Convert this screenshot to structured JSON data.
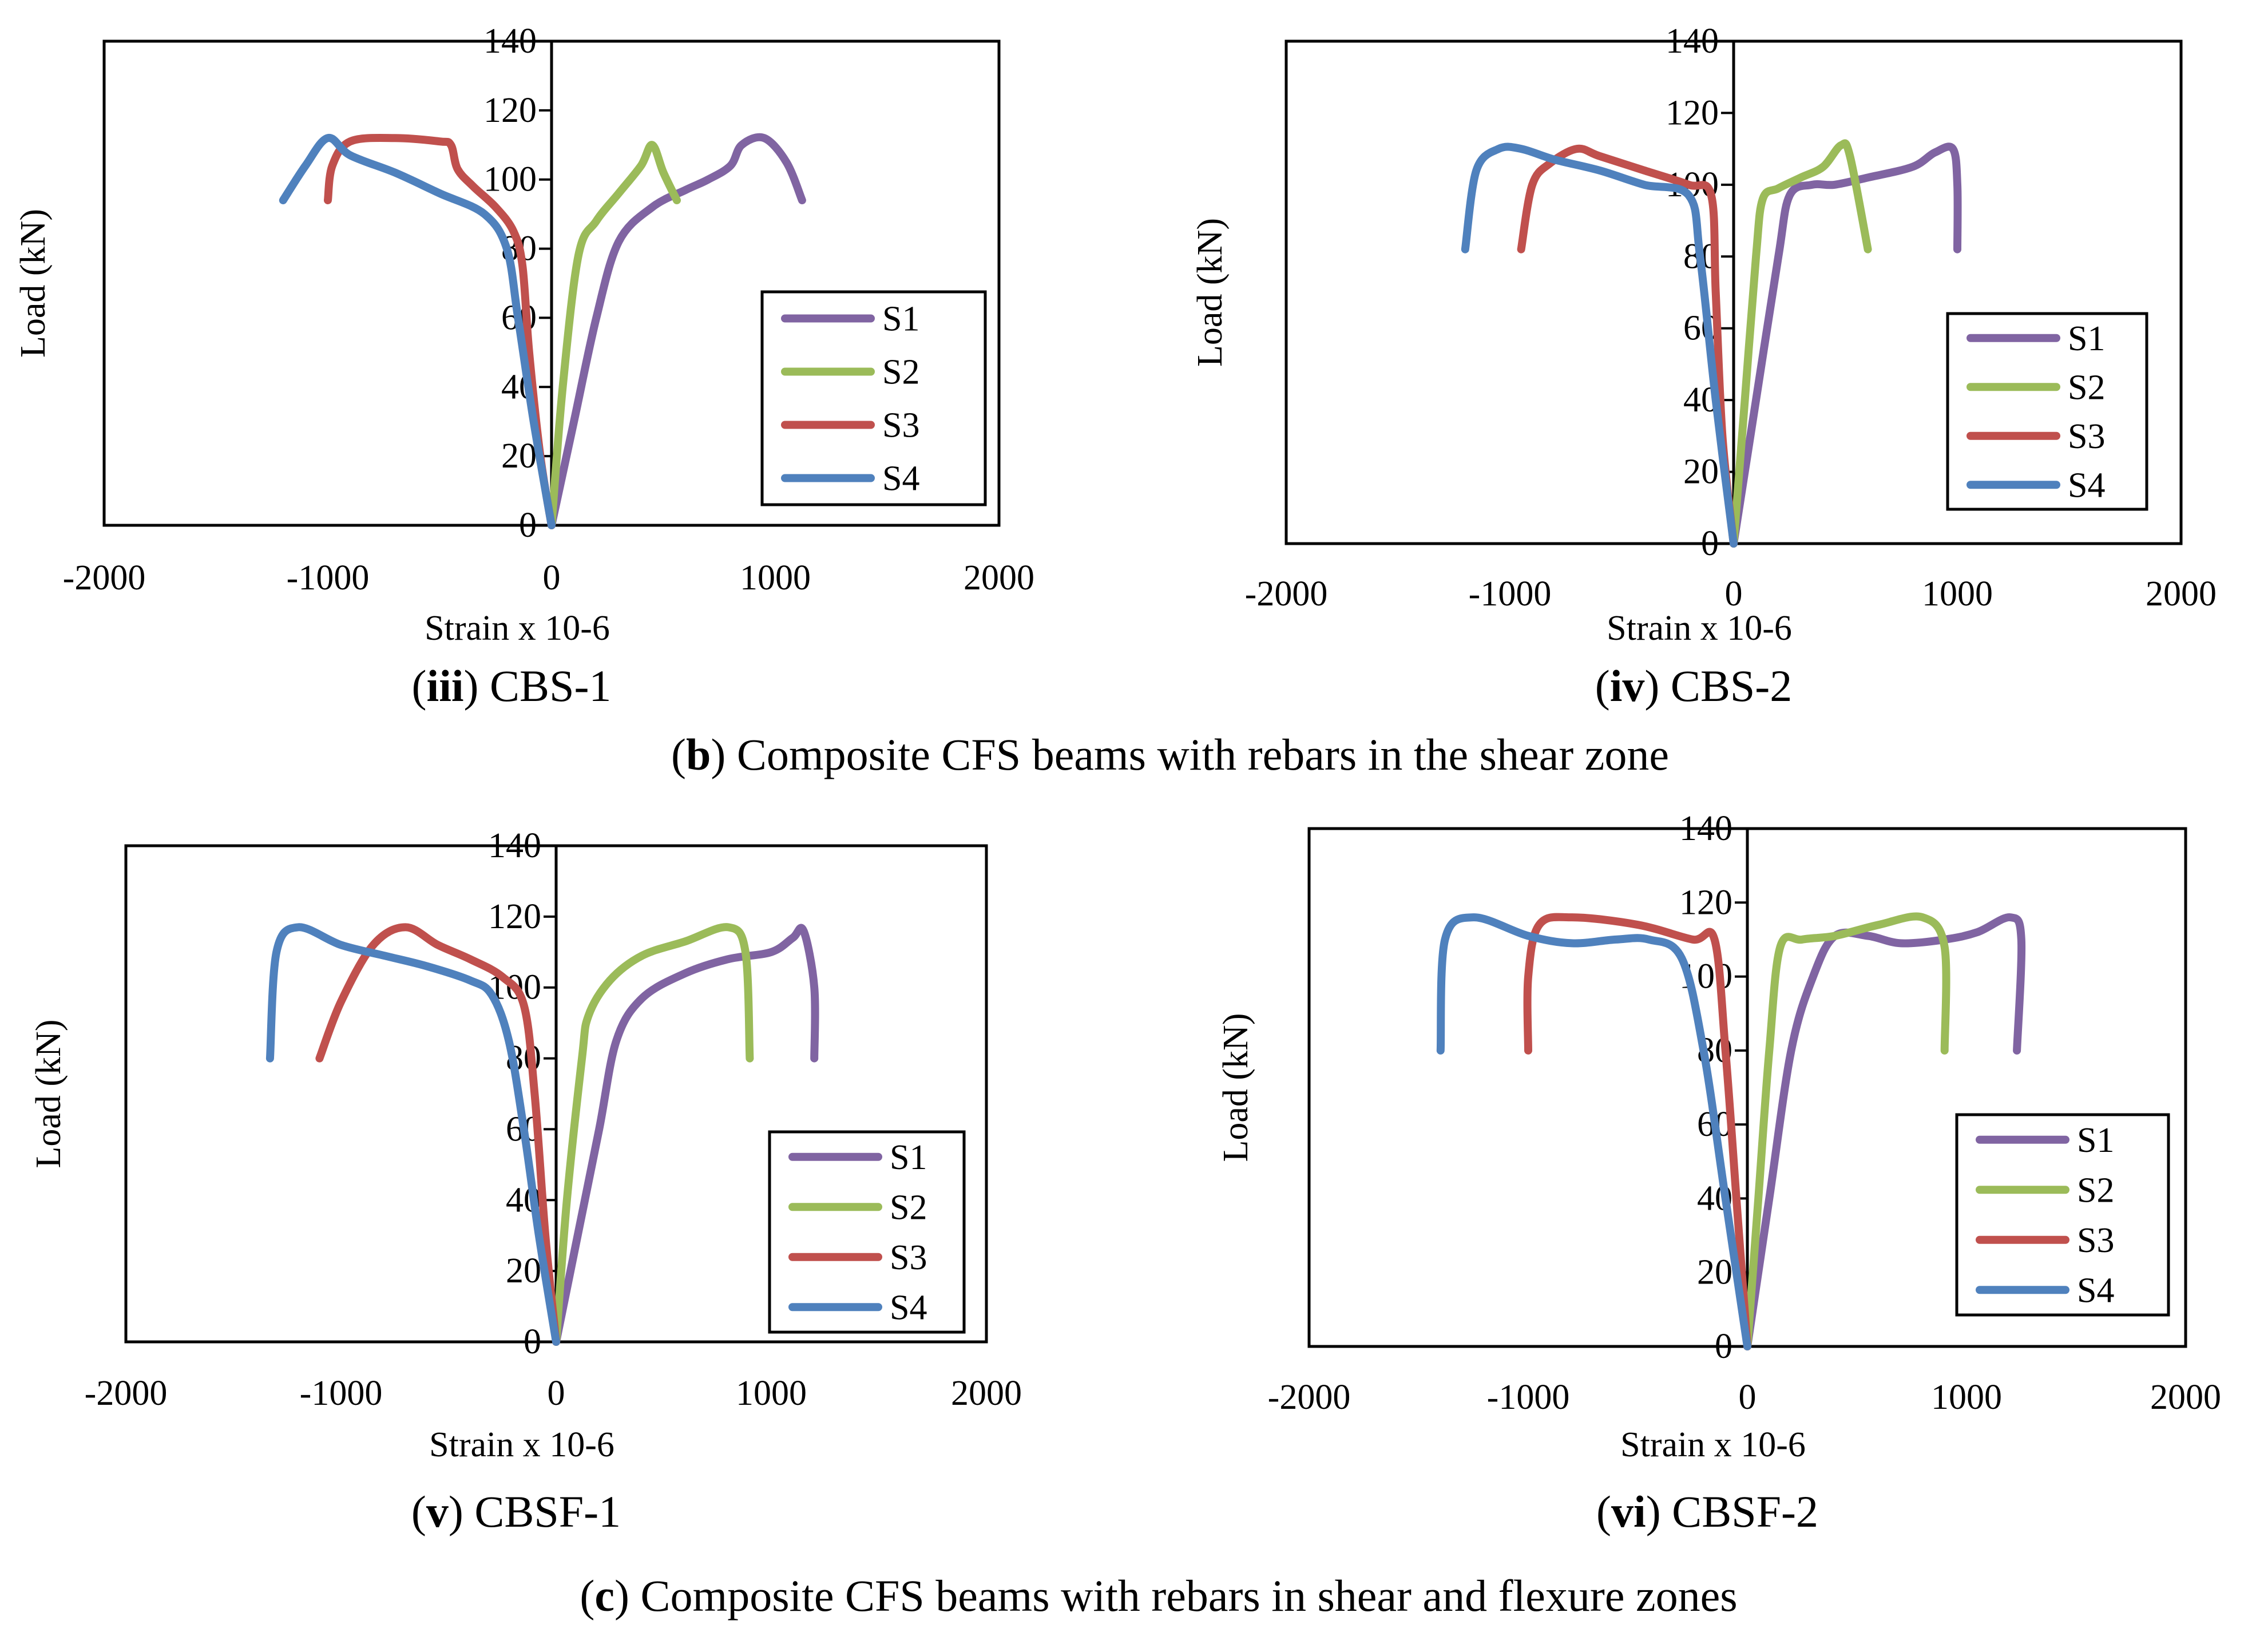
{
  "figure": {
    "group_b": {
      "letter": "b",
      "text": "Composite CFS beams with rebars in the shear zone"
    },
    "group_c": {
      "letter": "c",
      "text": "Composite CFS beams with rebars in shear and flexure zones"
    }
  },
  "colors": {
    "S1": "#8064A2",
    "S2": "#9BBB59",
    "S3": "#C0504D",
    "S4": "#4F81BD"
  },
  "chart_data": [
    {
      "type": "line",
      "caption": {
        "roman": "iii",
        "name": "CBS-1"
      },
      "xlabel": "Strain x 10-6",
      "ylabel": "Load (kN)",
      "xlim": [
        -2000,
        2000
      ],
      "ylim": [
        0,
        140
      ],
      "xticks": [
        "-2000",
        "-1000",
        "0",
        "1000",
        "2000"
      ],
      "yticks": [
        "0",
        "20",
        "40",
        "60",
        "80",
        "100",
        "120",
        "140"
      ],
      "legend": "lower-right",
      "series": [
        {
          "name": "S1",
          "points": [
            [
              0,
              0
            ],
            [
              100,
              30
            ],
            [
              200,
              60
            ],
            [
              300,
              82
            ],
            [
              450,
              92
            ],
            [
              600,
              97
            ],
            [
              700,
              100
            ],
            [
              800,
              104
            ],
            [
              850,
              110
            ],
            [
              950,
              112
            ],
            [
              1050,
              105
            ],
            [
              1120,
              94
            ]
          ]
        },
        {
          "name": "S2",
          "points": [
            [
              0,
              0
            ],
            [
              50,
              40
            ],
            [
              120,
              78
            ],
            [
              200,
              88
            ],
            [
              300,
              96
            ],
            [
              400,
              104
            ],
            [
              450,
              110
            ],
            [
              500,
              102
            ],
            [
              560,
              94
            ]
          ]
        },
        {
          "name": "S3",
          "points": [
            [
              0,
              0
            ],
            [
              -50,
              20
            ],
            [
              -100,
              50
            ],
            [
              -130,
              75
            ],
            [
              -170,
              85
            ],
            [
              -250,
              92
            ],
            [
              -350,
              98
            ],
            [
              -420,
              103
            ],
            [
              -450,
              110
            ],
            [
              -500,
              111
            ],
            [
              -700,
              112
            ],
            [
              -900,
              111
            ],
            [
              -980,
              104
            ],
            [
              -1000,
              94
            ]
          ]
        },
        {
          "name": "S4",
          "points": [
            [
              0,
              0
            ],
            [
              -80,
              30
            ],
            [
              -150,
              60
            ],
            [
              -200,
              80
            ],
            [
              -300,
              90
            ],
            [
              -500,
              96
            ],
            [
              -700,
              102
            ],
            [
              -900,
              107
            ],
            [
              -1000,
              112
            ],
            [
              -1100,
              104
            ],
            [
              -1200,
              94
            ]
          ]
        }
      ]
    },
    {
      "type": "line",
      "caption": {
        "roman": "iv",
        "name": "CBS-2"
      },
      "xlabel": "Strain x 10-6",
      "ylabel": "Load (kN)",
      "xlim": [
        -2000,
        2000
      ],
      "ylim": [
        0,
        140
      ],
      "xticks": [
        "-2000",
        "-1000",
        "0",
        "1000",
        "2000"
      ],
      "yticks": [
        "0",
        "20",
        "40",
        "60",
        "80",
        "100",
        "120",
        "140"
      ],
      "legend": "lower-right",
      "series": [
        {
          "name": "S1",
          "points": [
            [
              0,
              0
            ],
            [
              100,
              40
            ],
            [
              200,
              80
            ],
            [
              250,
              97
            ],
            [
              350,
              100
            ],
            [
              450,
              100
            ],
            [
              600,
              102
            ],
            [
              800,
              105
            ],
            [
              900,
              109
            ],
            [
              980,
              110
            ],
            [
              1000,
              100
            ],
            [
              1000,
              82
            ]
          ]
        },
        {
          "name": "S2",
          "points": [
            [
              0,
              0
            ],
            [
              50,
              40
            ],
            [
              100,
              80
            ],
            [
              130,
              96
            ],
            [
              200,
              99
            ],
            [
              300,
              102
            ],
            [
              400,
              105
            ],
            [
              480,
              111
            ],
            [
              520,
              108
            ],
            [
              600,
              82
            ]
          ]
        },
        {
          "name": "S3",
          "points": [
            [
              0,
              0
            ],
            [
              -50,
              30
            ],
            [
              -80,
              70
            ],
            [
              -100,
              97
            ],
            [
              -200,
              100
            ],
            [
              -400,
              104
            ],
            [
              -600,
              108
            ],
            [
              -700,
              110
            ],
            [
              -820,
              106
            ],
            [
              -900,
              100
            ],
            [
              -950,
              82
            ]
          ]
        },
        {
          "name": "S4",
          "points": [
            [
              0,
              0
            ],
            [
              -80,
              40
            ],
            [
              -150,
              80
            ],
            [
              -200,
              97
            ],
            [
              -400,
              100
            ],
            [
              -600,
              104
            ],
            [
              -800,
              107
            ],
            [
              -950,
              110
            ],
            [
              -1050,
              110
            ],
            [
              -1150,
              104
            ],
            [
              -1200,
              82
            ]
          ]
        }
      ]
    },
    {
      "type": "line",
      "caption": {
        "roman": "v",
        "name": "CBSF-1"
      },
      "xlabel": "Strain x 10-6",
      "ylabel": "Load (kN)",
      "xlim": [
        -2000,
        2000
      ],
      "ylim": [
        0,
        140
      ],
      "xticks": [
        "-2000",
        "-1000",
        "0",
        "1000",
        "2000"
      ],
      "yticks": [
        "0",
        "20",
        "40",
        "60",
        "80",
        "100",
        "120",
        "140"
      ],
      "legend": "lower-right",
      "series": [
        {
          "name": "S1",
          "points": [
            [
              0,
              0
            ],
            [
              100,
              30
            ],
            [
              200,
              60
            ],
            [
              280,
              85
            ],
            [
              400,
              97
            ],
            [
              600,
              104
            ],
            [
              800,
              108
            ],
            [
              1000,
              110
            ],
            [
              1100,
              114
            ],
            [
              1150,
              116
            ],
            [
              1200,
              100
            ],
            [
              1200,
              80
            ]
          ]
        },
        {
          "name": "S2",
          "points": [
            [
              0,
              0
            ],
            [
              50,
              40
            ],
            [
              120,
              80
            ],
            [
              150,
              92
            ],
            [
              250,
              102
            ],
            [
              400,
              109
            ],
            [
              600,
              113
            ],
            [
              800,
              117
            ],
            [
              880,
              110
            ],
            [
              900,
              80
            ]
          ]
        },
        {
          "name": "S3",
          "points": [
            [
              0,
              0
            ],
            [
              -50,
              30
            ],
            [
              -100,
              70
            ],
            [
              -150,
              95
            ],
            [
              -250,
              103
            ],
            [
              -400,
              108
            ],
            [
              -550,
              112
            ],
            [
              -700,
              117
            ],
            [
              -850,
              112
            ],
            [
              -1000,
              96
            ],
            [
              -1100,
              80
            ]
          ]
        },
        {
          "name": "S4",
          "points": [
            [
              0,
              0
            ],
            [
              -80,
              30
            ],
            [
              -150,
              60
            ],
            [
              -220,
              85
            ],
            [
              -300,
              98
            ],
            [
              -400,
              102
            ],
            [
              -600,
              106
            ],
            [
              -800,
              109
            ],
            [
              -1000,
              112
            ],
            [
              -1200,
              117
            ],
            [
              -1300,
              110
            ],
            [
              -1330,
              80
            ]
          ]
        }
      ]
    },
    {
      "type": "line",
      "caption": {
        "roman": "vi",
        "name": "CBSF-2"
      },
      "xlabel": "Strain x 10-6",
      "ylabel": "Load (kN)",
      "xlim": [
        -2000,
        2000
      ],
      "ylim": [
        0,
        140
      ],
      "xticks": [
        "-2000",
        "-1000",
        "0",
        "1000",
        "2000"
      ],
      "yticks": [
        "0",
        "20",
        "40",
        "60",
        "80",
        "100",
        "120",
        "140"
      ],
      "legend": "lower-right",
      "series": [
        {
          "name": "S1",
          "points": [
            [
              0,
              0
            ],
            [
              100,
              40
            ],
            [
              200,
              80
            ],
            [
              300,
              100
            ],
            [
              400,
              111
            ],
            [
              550,
              111
            ],
            [
              700,
              109
            ],
            [
              900,
              110
            ],
            [
              1050,
              112
            ],
            [
              1200,
              116
            ],
            [
              1250,
              110
            ],
            [
              1230,
              80
            ]
          ]
        },
        {
          "name": "S2",
          "points": [
            [
              0,
              0
            ],
            [
              50,
              40
            ],
            [
              100,
              80
            ],
            [
              150,
              108
            ],
            [
              250,
              110
            ],
            [
              400,
              111
            ],
            [
              600,
              114
            ],
            [
              800,
              116
            ],
            [
              900,
              108
            ],
            [
              900,
              80
            ]
          ]
        },
        {
          "name": "S3",
          "points": [
            [
              0,
              0
            ],
            [
              -50,
              40
            ],
            [
              -100,
              80
            ],
            [
              -150,
              110
            ],
            [
              -250,
              110
            ],
            [
              -500,
              114
            ],
            [
              -800,
              116
            ],
            [
              -950,
              114
            ],
            [
              -1000,
              100
            ],
            [
              -1000,
              80
            ]
          ]
        },
        {
          "name": "S4",
          "points": [
            [
              0,
              0
            ],
            [
              -100,
              40
            ],
            [
              -200,
              80
            ],
            [
              -300,
              105
            ],
            [
              -450,
              110
            ],
            [
              -600,
              110
            ],
            [
              -800,
              109
            ],
            [
              -1000,
              111
            ],
            [
              -1250,
              116
            ],
            [
              -1380,
              110
            ],
            [
              -1400,
              80
            ]
          ]
        }
      ]
    }
  ]
}
